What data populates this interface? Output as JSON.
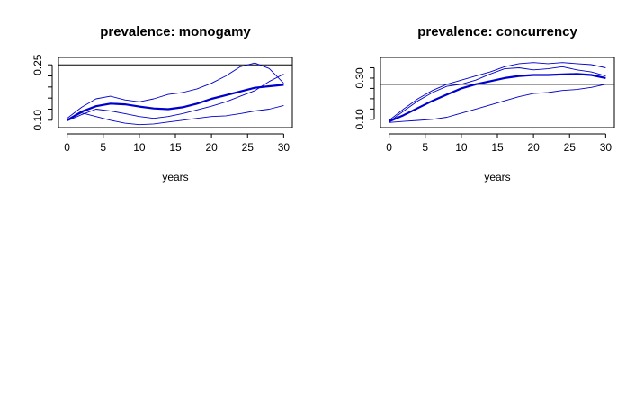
{
  "chart_data": [
    {
      "type": "line",
      "title": "prevalence: monogamy",
      "xlabel": "years",
      "ylabel": "",
      "xlim": [
        0,
        30
      ],
      "ylim": [
        0.08,
        0.27
      ],
      "x_ticks": [
        0,
        5,
        10,
        15,
        20,
        25,
        30
      ],
      "x_tick_labels": [
        "0",
        "5",
        "10",
        "15",
        "20",
        "25",
        "30"
      ],
      "y_ticks": [
        0.1,
        0.25
      ],
      "y_tick_labels": [
        "0.10",
        "0.25"
      ],
      "y_minor_ticks": [
        0.13,
        0.16,
        0.19,
        0.22
      ],
      "reference_line": 0.25,
      "color": "#0000cc",
      "x": [
        0,
        2,
        4,
        6,
        8,
        10,
        12,
        14,
        16,
        18,
        20,
        22,
        24,
        26,
        28,
        30
      ],
      "series": [
        {
          "role": "mean",
          "values": [
            0.1,
            0.123,
            0.138,
            0.145,
            0.143,
            0.137,
            0.132,
            0.13,
            0.135,
            0.145,
            0.158,
            0.168,
            0.178,
            0.188,
            0.192,
            0.196
          ]
        },
        {
          "role": "upper",
          "values": [
            0.105,
            0.135,
            0.158,
            0.165,
            0.155,
            0.15,
            0.158,
            0.17,
            0.175,
            0.185,
            0.2,
            0.22,
            0.245,
            0.255,
            0.24,
            0.2
          ]
        },
        {
          "role": "lower",
          "values": [
            0.098,
            0.115,
            0.13,
            0.125,
            0.118,
            0.11,
            0.105,
            0.11,
            0.118,
            0.128,
            0.138,
            0.15,
            0.165,
            0.18,
            0.205,
            0.225
          ]
        },
        {
          "role": "lowest",
          "values": [
            0.1,
            0.12,
            0.11,
            0.1,
            0.092,
            0.088,
            0.09,
            0.095,
            0.1,
            0.105,
            0.11,
            0.112,
            0.118,
            0.125,
            0.13,
            0.14
          ]
        }
      ]
    },
    {
      "type": "line",
      "title": "prevalence: concurrency",
      "xlabel": "years",
      "ylabel": "",
      "xlim": [
        0,
        30
      ],
      "ylim": [
        0.06,
        0.4
      ],
      "x_ticks": [
        0,
        5,
        10,
        15,
        20,
        25,
        30
      ],
      "x_tick_labels": [
        "0",
        "5",
        "10",
        "15",
        "20",
        "25",
        "30"
      ],
      "y_ticks": [
        0.1,
        0.3
      ],
      "y_tick_labels": [
        "0.10",
        "0.30"
      ],
      "y_minor_ticks": [
        0.15,
        0.2,
        0.25,
        0.35
      ],
      "reference_line": 0.27,
      "color": "#0000cc",
      "x": [
        0,
        2,
        4,
        6,
        8,
        10,
        12,
        14,
        16,
        18,
        20,
        22,
        24,
        26,
        28,
        30
      ],
      "series": [
        {
          "role": "mean",
          "values": [
            0.09,
            0.12,
            0.155,
            0.19,
            0.22,
            0.25,
            0.27,
            0.285,
            0.3,
            0.31,
            0.315,
            0.315,
            0.318,
            0.32,
            0.315,
            0.3
          ]
        },
        {
          "role": "upper",
          "values": [
            0.095,
            0.15,
            0.2,
            0.24,
            0.27,
            0.29,
            0.31,
            0.33,
            0.355,
            0.37,
            0.375,
            0.37,
            0.375,
            0.37,
            0.365,
            0.35
          ]
        },
        {
          "role": "lower",
          "values": [
            0.088,
            0.14,
            0.19,
            0.23,
            0.26,
            0.27,
            0.29,
            0.32,
            0.345,
            0.35,
            0.34,
            0.345,
            0.355,
            0.34,
            0.33,
            0.31
          ]
        },
        {
          "role": "lowest",
          "values": [
            0.085,
            0.09,
            0.095,
            0.1,
            0.11,
            0.13,
            0.15,
            0.17,
            0.19,
            0.21,
            0.225,
            0.23,
            0.24,
            0.245,
            0.255,
            0.27
          ]
        }
      ]
    }
  ]
}
